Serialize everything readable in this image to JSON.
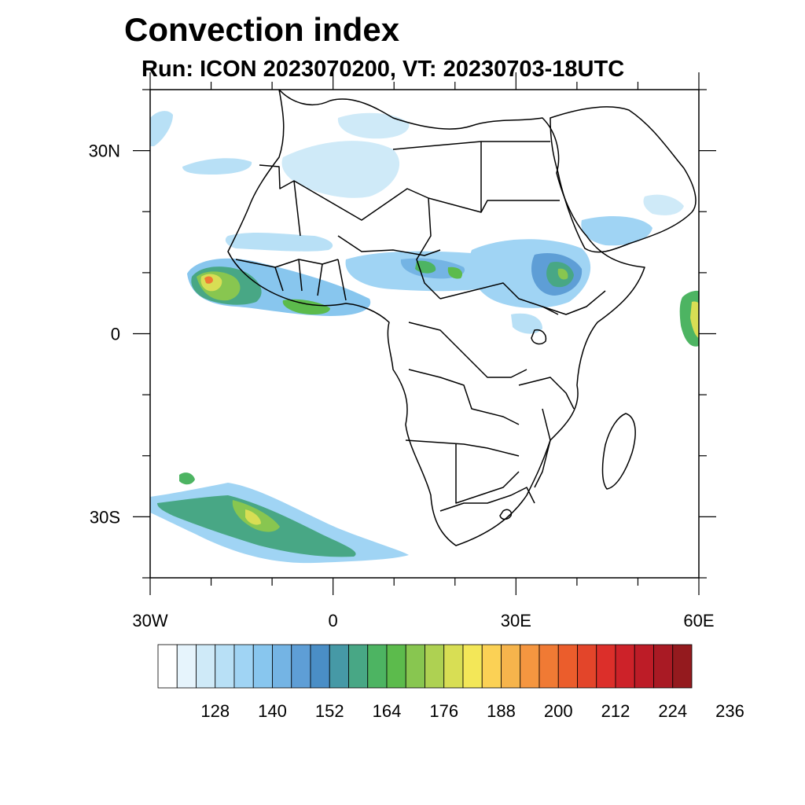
{
  "title": "Convection index",
  "subtitle": "Run: ICON 2023070200,  VT: 20230703-18UTC",
  "map": {
    "lon_labels": [
      {
        "lon": -30,
        "text": "30W"
      },
      {
        "lon": 0,
        "text": "0"
      },
      {
        "lon": 30,
        "text": "30E"
      },
      {
        "lon": 60,
        "text": "60E"
      }
    ],
    "lat_labels": [
      {
        "lat": 30,
        "text": "30N"
      },
      {
        "lat": 0,
        "text": "0"
      },
      {
        "lat": -30,
        "text": "30S"
      }
    ]
  },
  "colorbar": {
    "colors": [
      "#ffffff",
      "#e6f4fc",
      "#cfeaf8",
      "#b8e0f6",
      "#a0d4f4",
      "#88c6ee",
      "#74b4e4",
      "#5e9ed6",
      "#4a8ec6",
      "#4699a6",
      "#48a785",
      "#4db462",
      "#5cbb4c",
      "#88c650",
      "#aed152",
      "#d8de54",
      "#f3e758",
      "#fbd155",
      "#f6b44c",
      "#f59640",
      "#f07a34",
      "#eb5d2c",
      "#e3452a",
      "#dc2f2a",
      "#cd2229",
      "#bd1c27",
      "#a91a24",
      "#941a1e"
    ],
    "labels": [
      "128",
      "140",
      "152",
      "164",
      "176",
      "188",
      "200",
      "212",
      "224",
      "236"
    ]
  }
}
